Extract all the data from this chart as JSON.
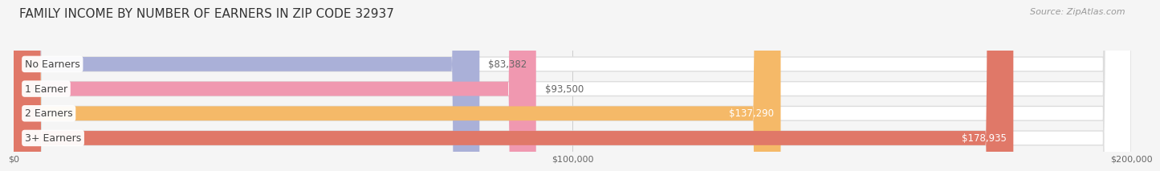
{
  "title": "FAMILY INCOME BY NUMBER OF EARNERS IN ZIP CODE 32937",
  "source": "Source: ZipAtlas.com",
  "categories": [
    "No Earners",
    "1 Earner",
    "2 Earners",
    "3+ Earners"
  ],
  "values": [
    83382,
    93500,
    137290,
    178935
  ],
  "labels": [
    "$83,382",
    "$93,500",
    "$137,290",
    "$178,935"
  ],
  "bar_colors": [
    "#aab0d8",
    "#f098b0",
    "#f5b968",
    "#e07868"
  ],
  "bg_color": "#f5f5f5",
  "bar_bg_color": "#e8e8e8",
  "bar_outline_color": "#d8d8d8",
  "xlim": [
    0,
    200000
  ],
  "xticks": [
    0,
    100000,
    200000
  ],
  "xticklabels": [
    "$0",
    "$100,000",
    "$200,000"
  ],
  "title_fontsize": 11,
  "source_fontsize": 8,
  "label_fontsize": 8.5,
  "category_fontsize": 9,
  "value_inside_color": "#ffffff",
  "value_outside_color": "#666666"
}
